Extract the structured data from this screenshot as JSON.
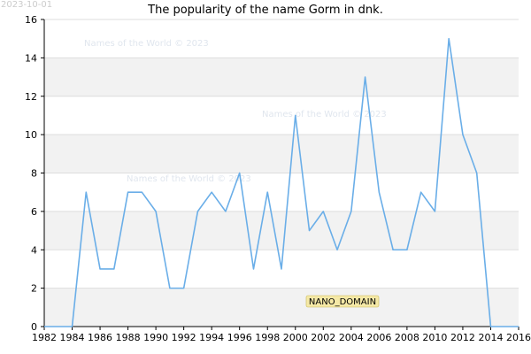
{
  "date_stamp": "2023-10-01",
  "watermark": "Names of the World © 2023",
  "nano_label": "NANO_DOMAIN",
  "colors": {
    "line": "#6aaee8",
    "band": "#f2f2f2",
    "grid": "#dddddd",
    "nano_bg": "#f5e9a6"
  },
  "chart_data": {
    "type": "line",
    "title": "The popularity of the name Gorm in dnk.",
    "xlabel": "",
    "ylabel": "",
    "xlim": [
      1982,
      2016
    ],
    "ylim": [
      0,
      16
    ],
    "x_ticks": [
      1982,
      1984,
      1986,
      1988,
      1990,
      1992,
      1994,
      1996,
      1998,
      2000,
      2002,
      2004,
      2006,
      2008,
      2010,
      2012,
      2014,
      2016
    ],
    "y_ticks": [
      0,
      2,
      4,
      6,
      8,
      10,
      12,
      14,
      16
    ],
    "grid": true,
    "series": [
      {
        "x": [
          1982,
          1983,
          1984,
          1985,
          1986,
          1987,
          1988,
          1989,
          1990,
          1991,
          1992,
          1993,
          1994,
          1995,
          1996,
          1997,
          1998,
          1999,
          2000,
          2001,
          2002,
          2003,
          2004,
          2005,
          2006,
          2007,
          2008,
          2009,
          2010,
          2011,
          2012,
          2013,
          2014,
          2015,
          2016
        ],
        "values": [
          0,
          0,
          0,
          7,
          3,
          3,
          7,
          7,
          6,
          2,
          2,
          6,
          7,
          6,
          8,
          3,
          7,
          3,
          11,
          5,
          6,
          4,
          6,
          13,
          7,
          4,
          4,
          7,
          6,
          15,
          10,
          8,
          0,
          0,
          0
        ]
      }
    ]
  }
}
